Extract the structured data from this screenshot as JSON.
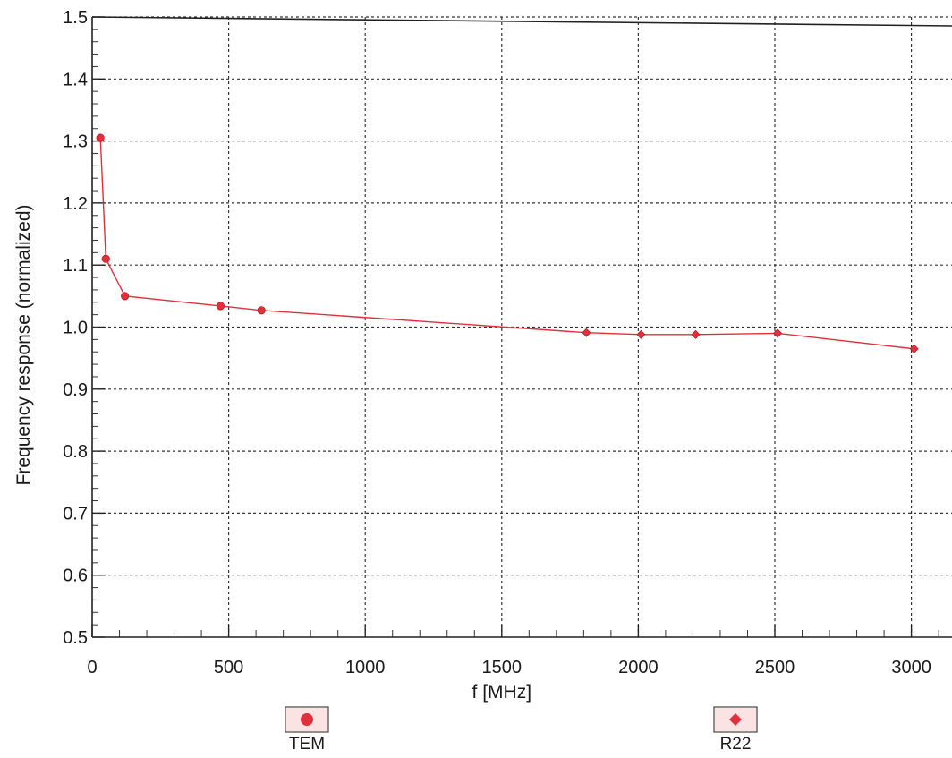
{
  "chart_data": {
    "type": "line",
    "xlabel": "f [MHz]",
    "ylabel": "Frequency response (normalized)",
    "xlim": [
      0,
      3150
    ],
    "ylim": [
      0.5,
      1.5
    ],
    "xticks": [
      0,
      500,
      1000,
      1500,
      2000,
      2500,
      3000
    ],
    "xtick_labels": [
      "0",
      "500",
      "1000",
      "1500",
      "2000",
      "2500",
      "3000"
    ],
    "yticks": [
      0.5,
      0.6,
      0.7,
      0.8,
      0.9,
      1.0,
      1.1,
      1.2,
      1.3,
      1.4,
      1.5
    ],
    "ytick_labels": [
      "0.5",
      "0.6",
      "0.7",
      "0.8",
      "0.9",
      "1.0",
      "1.1",
      "1.2",
      "1.3",
      "1.4",
      "1.5"
    ],
    "grid": true,
    "legend_position": "bottom",
    "series_color": "#e0303c",
    "series": [
      {
        "name": "TEM",
        "marker": "circle",
        "x": [
          30,
          50,
          120,
          470,
          620
        ],
        "y": [
          1.305,
          1.11,
          1.05,
          1.034,
          1.027
        ]
      },
      {
        "name": "R22",
        "marker": "diamond",
        "x": [
          1810,
          2010,
          2210,
          2510,
          3010
        ],
        "y": [
          0.991,
          0.988,
          0.988,
          0.99,
          0.965
        ]
      }
    ]
  }
}
